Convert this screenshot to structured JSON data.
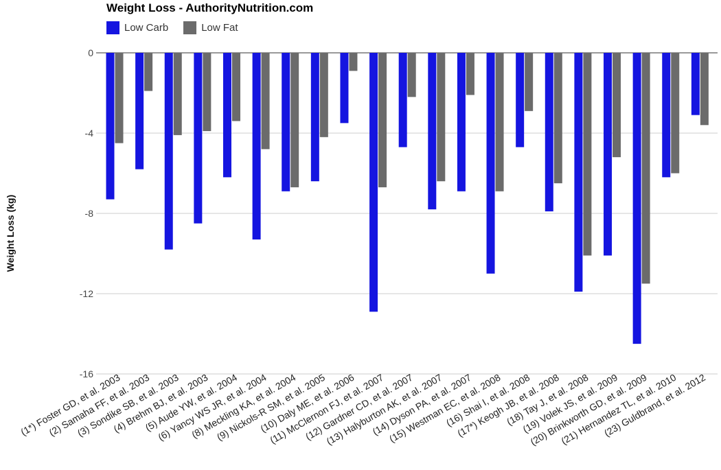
{
  "chart_data": {
    "type": "bar",
    "title": "Weight Loss - AuthorityNutrition.com",
    "ylabel": "Weight Loss (kg)",
    "xlabel": "",
    "ylim": [
      -16,
      0
    ],
    "yticks": [
      0,
      -4,
      -8,
      -12,
      -16
    ],
    "grid": true,
    "legend_position": "top-left",
    "colors": {
      "low_carb": "#1515e0",
      "low_fat": "#6b6b6b"
    },
    "categories": [
      "(1*) Foster GD, et al. 2003",
      "(2) Samaha FF, et al. 2003",
      "(3) Sondike SB, et al. 2003",
      "(4) Brehm BJ, et al. 2003",
      "(5) Aude YW, et al. 2004",
      "(6) Yancy WS JR, et al. 2004",
      "(8) Meckling KA, et al. 2004",
      "(9) Nickols-R SM, et al. 2005",
      "(10) Daly ME, et al. 2006",
      "(11) McClernon FJ, et al. 2007",
      "(12) Gardner CD, et al. 2007",
      "(13) Halyburton AK, et al. 2007",
      "(14) Dyson PA, et al. 2007",
      "(15) Westman EC, et al. 2008",
      "(16) Shai I, et al. 2008",
      "(17*) Keogh JB, et al. 2008",
      "(18) Tay J, et al. 2008",
      "(19) Volek JS, et al. 2009",
      "(20) Brinkworth GD, et al. 2009",
      "(21) Hernandez TL, et al. 2010",
      "(23) Guldbrand, et al. 2012"
    ],
    "series": [
      {
        "name": "Low Carb",
        "values": [
          -7.3,
          -5.8,
          -9.8,
          -8.5,
          -6.2,
          -9.3,
          -6.9,
          -6.4,
          -3.5,
          -12.9,
          -4.7,
          -7.8,
          -6.9,
          -11.0,
          -4.7,
          -7.9,
          -11.9,
          -10.1,
          -14.5,
          -6.2,
          -3.1
        ]
      },
      {
        "name": "Low Fat",
        "values": [
          -4.5,
          -1.9,
          -4.1,
          -3.9,
          -3.4,
          -4.8,
          -6.7,
          -4.2,
          -0.9,
          -6.7,
          -2.2,
          -6.4,
          -2.1,
          -6.9,
          -2.9,
          -6.5,
          -10.1,
          -5.2,
          -11.5,
          -6.0,
          -3.6
        ]
      }
    ]
  }
}
